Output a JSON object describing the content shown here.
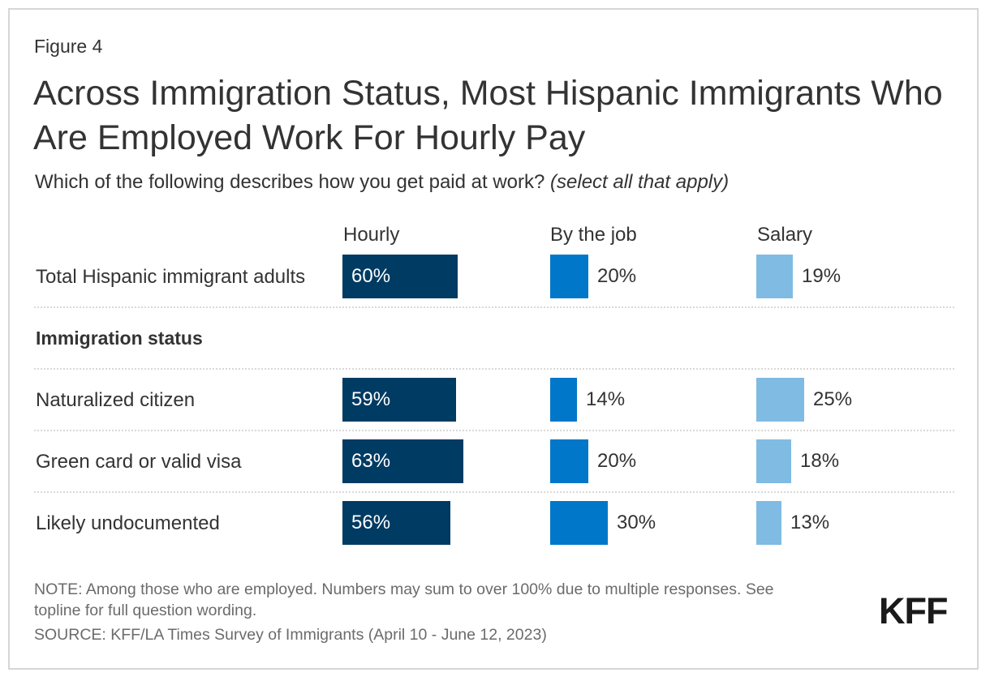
{
  "figure_label": "Figure 4",
  "title": "Across Immigration Status, Most Hispanic Immigrants Who Are Employed Work For Hourly Pay",
  "subtitle": {
    "question": "Which of the following describes how you get paid at work?",
    "qualifier": "(select all that apply)"
  },
  "colors": {
    "hourly": "#003b63",
    "by_the_job": "#0077c8",
    "salary": "#7fbbe3"
  },
  "chart_data": {
    "type": "bar",
    "orientation": "horizontal",
    "layout": "small-multiples",
    "title": "Across Immigration Status, Most Hispanic Immigrants Who Are Employed Work For Hourly Pay",
    "subtitle": "Which of the following describes how you get paid at work? (select all that apply)",
    "categories": [
      "Total Hispanic immigrant adults",
      "Naturalized citizen",
      "Green card or valid visa",
      "Likely undocumented"
    ],
    "groups": [
      {
        "heading": "",
        "categories": [
          "Total Hispanic immigrant adults"
        ]
      },
      {
        "heading": "Immigration status",
        "categories": [
          "Naturalized citizen",
          "Green card or valid visa",
          "Likely undocumented"
        ]
      }
    ],
    "series": [
      {
        "name": "Hourly",
        "values": [
          60,
          59,
          63,
          56
        ]
      },
      {
        "name": "By the job",
        "values": [
          20,
          14,
          20,
          30
        ]
      },
      {
        "name": "Salary",
        "values": [
          19,
          25,
          18,
          13
        ]
      }
    ],
    "value_format": "percent",
    "xlim": [
      0,
      100
    ],
    "grid": false,
    "legend": "column-headers-top"
  },
  "rows": [
    {
      "label": "Total Hispanic immigrant adults"
    },
    {
      "label": "Naturalized citizen"
    },
    {
      "label": "Green card or valid visa"
    },
    {
      "label": "Likely undocumented"
    }
  ],
  "section_heading": "Immigration status",
  "notes": {
    "note_line1": "NOTE: Among those who are employed. Numbers may sum to over 100% due to multiple responses. See",
    "note_line2": "topline for full question wording.",
    "source": "SOURCE: KFF/LA Times Survey of Immigrants (April 10 - June 12, 2023)"
  },
  "logo": "KFF"
}
